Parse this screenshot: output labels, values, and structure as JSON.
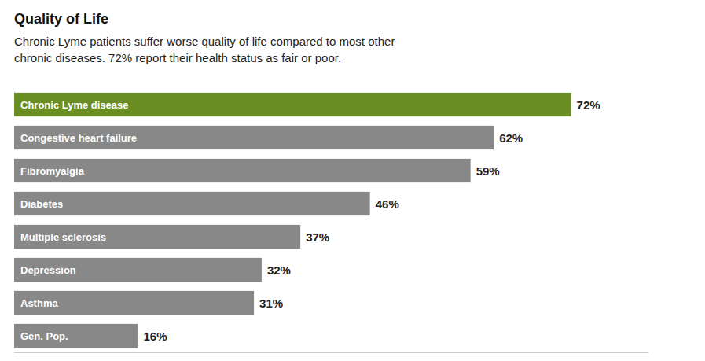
{
  "chart_data": {
    "type": "bar",
    "orientation": "horizontal",
    "title": "Quality of Life",
    "subtitle": "Chronic Lyme patients suffer worse quality of life compared to most other\nchronic diseases. 72% report their health status as fair or poor.",
    "categories": [
      "Gen. Pop.",
      "Asthma",
      "Depression",
      "Multiple sclerosis",
      "Diabetes",
      "Fibromyalgia",
      "Congestive heart failure",
      "Chronic Lyme disease"
    ],
    "values": [
      16,
      31,
      32,
      37,
      46,
      59,
      62,
      72
    ],
    "value_labels": [
      "16%",
      "31%",
      "32%",
      "37%",
      "46%",
      "59%",
      "62%",
      "72%"
    ],
    "colors": [
      "#888888",
      "#888888",
      "#888888",
      "#888888",
      "#888888",
      "#888888",
      "#888888",
      "#6b8e23"
    ],
    "xlim": [
      0,
      82
    ],
    "data_labels": true,
    "tick_labels": false,
    "grid": false
  }
}
